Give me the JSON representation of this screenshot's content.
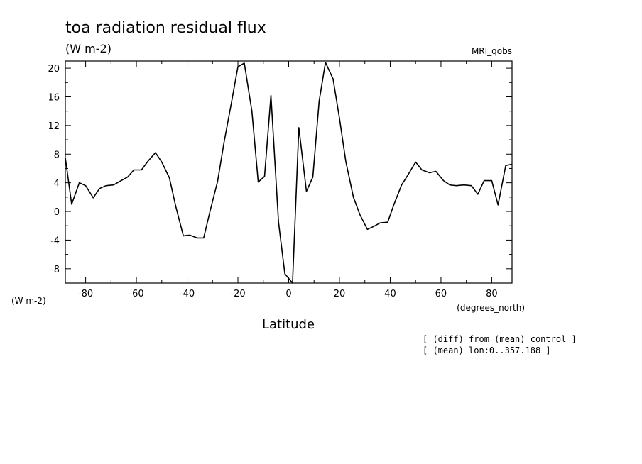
{
  "chart_data": {
    "type": "line",
    "title": "toa radiation residual flux",
    "units_label": "(W m-2)",
    "dataset_label": "MRI_qobs",
    "y_units_label": "(W m-2)",
    "x_units_label": "(degrees_north)",
    "xlabel": "Latitude",
    "notes": [
      "[ (diff) from (mean) control ]",
      "[ (mean) lon:0..357.188 ]"
    ],
    "xlim": [
      -88,
      88
    ],
    "ylim": [
      -10,
      21
    ],
    "xticks": [
      -80,
      -60,
      -40,
      -20,
      0,
      20,
      40,
      60,
      80
    ],
    "xtick_labels": [
      "-80",
      "-60",
      "-40",
      "-20",
      "0",
      "20",
      "40",
      "60",
      "80"
    ],
    "yticks": [
      -8,
      -4,
      0,
      4,
      8,
      12,
      16,
      20
    ],
    "ytick_labels": [
      "-8",
      "-4",
      "0",
      "4",
      "8",
      "12",
      "16",
      "20"
    ],
    "grid": false,
    "line_color": "#000000",
    "series": [
      {
        "x": [
          -88,
          -85.5,
          -82.5,
          -80,
          -77,
          -74.5,
          -72,
          -69,
          -66,
          -63.5,
          -61,
          -58,
          -55.5,
          -52.5,
          -50,
          -47,
          -44.5,
          -41.5,
          -39,
          -36,
          -33.5,
          -31,
          -28,
          -25.5,
          -22.5,
          -20,
          -17.5,
          -14.5,
          -12,
          -9.5,
          -7,
          -4,
          -1.5,
          1.5,
          4,
          7,
          9.5,
          12,
          14.5,
          17.5,
          20,
          22.5,
          25.5,
          28,
          31,
          33.5,
          36,
          39,
          41.5,
          44.5,
          47,
          50,
          52.5,
          55.5,
          58,
          61,
          63.5,
          66,
          69,
          72,
          74.5,
          77,
          80,
          82.5,
          85.5,
          88
        ],
        "y": [
          7.5,
          1.0,
          4.0,
          3.6,
          1.9,
          3.2,
          3.6,
          3.7,
          4.3,
          4.8,
          5.8,
          5.8,
          7.0,
          8.2,
          6.9,
          4.7,
          0.7,
          -3.4,
          -3.3,
          -3.7,
          -3.7,
          0.0,
          4.2,
          9.6,
          15.3,
          20.2,
          20.7,
          14.0,
          4.1,
          4.9,
          16.2,
          -1.5,
          -8.7,
          -10.0,
          11.7,
          2.8,
          4.8,
          15.4,
          20.8,
          18.5,
          13.0,
          7.0,
          2.0,
          -0.4,
          -2.5,
          -2.1,
          -1.6,
          -1.5,
          1.0,
          3.7,
          5.1,
          6.9,
          5.8,
          5.4,
          5.6,
          4.3,
          3.7,
          3.6,
          3.7,
          3.6,
          2.4,
          4.3,
          4.3,
          0.9,
          6.4,
          6.6
        ]
      }
    ]
  }
}
